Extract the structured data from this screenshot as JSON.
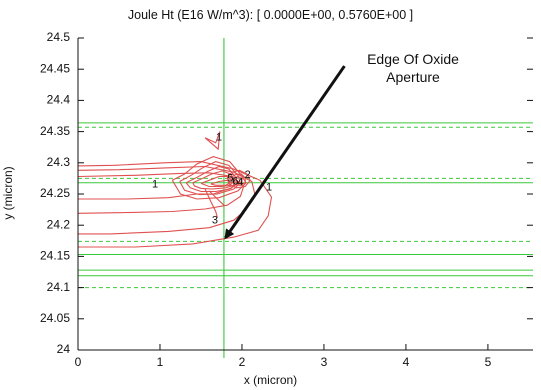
{
  "chart_data": {
    "type": "line",
    "title": "Joule Ht (E16 W/m^3): [  0.0000E+00,  0.5760E+00 ]",
    "xlabel": "x (micron)",
    "ylabel": "y (micron)",
    "xlim": [
      0,
      5.55
    ],
    "ylim": [
      24.0,
      24.5
    ],
    "x_ticks": [
      "0",
      "1",
      "2",
      "3",
      "4",
      "5"
    ],
    "y_ticks": [
      "24",
      "24.05",
      "24.1",
      "24.15",
      "24.2",
      "24.25",
      "24.3",
      "24.35",
      "24.4",
      "24.45",
      "24.5"
    ],
    "grid": false,
    "colors": {
      "contour": "#e05050",
      "guides": "#3cc83c",
      "axis": "#111111",
      "arrow": "#111111"
    },
    "annotation": {
      "text_line1": "Edge Of Oxide",
      "text_line2": "Aperture",
      "arrow_from": [
        3.25,
        24.455
      ],
      "arrow_to": [
        1.8,
        24.18
      ]
    },
    "vertical_guide_x": 1.78,
    "horizontal_guides": [
      {
        "y": 24.364,
        "style": "solid"
      },
      {
        "y": 24.357,
        "style": "dashed"
      },
      {
        "y": 24.275,
        "style": "dashed"
      },
      {
        "y": 24.268,
        "style": "solid"
      },
      {
        "y": 24.174,
        "style": "dashed"
      },
      {
        "y": 24.153,
        "style": "solid"
      },
      {
        "y": 24.128,
        "style": "solid"
      },
      {
        "y": 24.119,
        "style": "solid"
      },
      {
        "y": 24.1,
        "style": "dashed"
      }
    ],
    "contour_labels": [
      {
        "text": "1",
        "x": 1.72,
        "y": 24.34
      },
      {
        "text": "1",
        "x": 0.94,
        "y": 24.265
      },
      {
        "text": "1",
        "x": 2.33,
        "y": 24.26
      },
      {
        "text": "3",
        "x": 1.67,
        "y": 24.207
      },
      {
        "text": "2",
        "x": 2.07,
        "y": 24.28
      },
      {
        "text": "5",
        "x": 1.86,
        "y": 24.275
      },
      {
        "text": "6",
        "x": 1.92,
        "y": 24.27
      },
      {
        "text": "4",
        "x": 1.98,
        "y": 24.268
      }
    ],
    "contours": [
      [
        [
          1.55,
          24.34
        ],
        [
          1.68,
          24.332
        ],
        [
          1.73,
          24.35
        ],
        [
          1.71,
          24.322
        ],
        [
          1.55,
          24.34
        ]
      ],
      [
        [
          0.0,
          24.295
        ],
        [
          0.45,
          24.296
        ],
        [
          1.05,
          24.3
        ],
        [
          1.5,
          24.302
        ],
        [
          1.9,
          24.29
        ],
        [
          2.22,
          24.272
        ],
        [
          2.36,
          24.245
        ],
        [
          2.32,
          24.215
        ],
        [
          2.2,
          24.192
        ],
        [
          1.9,
          24.181
        ],
        [
          1.4,
          24.17
        ],
        [
          0.7,
          24.165
        ],
        [
          0.0,
          24.165
        ]
      ],
      [
        [
          0.0,
          24.288
        ],
        [
          0.5,
          24.289
        ],
        [
          1.1,
          24.292
        ],
        [
          1.55,
          24.294
        ],
        [
          1.9,
          24.285
        ],
        [
          2.12,
          24.27
        ],
        [
          2.16,
          24.248
        ],
        [
          2.05,
          24.225
        ],
        [
          1.9,
          24.208
        ],
        [
          1.6,
          24.196
        ],
        [
          1.1,
          24.19
        ],
        [
          0.4,
          24.186
        ],
        [
          0.0,
          24.186
        ]
      ],
      [
        [
          0.0,
          24.278
        ],
        [
          0.7,
          24.28
        ],
        [
          1.25,
          24.283
        ],
        [
          1.6,
          24.284
        ],
        [
          1.88,
          24.278
        ],
        [
          2.02,
          24.262
        ],
        [
          1.98,
          24.246
        ],
        [
          1.82,
          24.232
        ],
        [
          1.55,
          24.226
        ],
        [
          1.15,
          24.222
        ],
        [
          0.5,
          24.22
        ],
        [
          0.0,
          24.219
        ]
      ],
      [
        [
          0.0,
          24.242
        ],
        [
          0.6,
          24.242
        ],
        [
          1.1,
          24.244
        ],
        [
          1.45,
          24.25
        ],
        [
          1.65,
          24.25
        ],
        [
          1.88,
          24.26
        ]
      ],
      [
        [
          1.15,
          24.272
        ],
        [
          1.3,
          24.282
        ],
        [
          1.45,
          24.298
        ],
        [
          1.65,
          24.31
        ],
        [
          1.85,
          24.302
        ],
        [
          1.98,
          24.282
        ],
        [
          2.05,
          24.268
        ],
        [
          1.95,
          24.255
        ],
        [
          1.72,
          24.244
        ],
        [
          1.45,
          24.242
        ],
        [
          1.25,
          24.25
        ],
        [
          1.15,
          24.272
        ]
      ],
      [
        [
          1.24,
          24.27
        ],
        [
          1.38,
          24.28
        ],
        [
          1.52,
          24.292
        ],
        [
          1.68,
          24.302
        ],
        [
          1.84,
          24.296
        ],
        [
          1.95,
          24.28
        ],
        [
          1.98,
          24.268
        ],
        [
          1.9,
          24.258
        ],
        [
          1.7,
          24.25
        ],
        [
          1.48,
          24.249
        ],
        [
          1.3,
          24.256
        ],
        [
          1.24,
          24.27
        ]
      ],
      [
        [
          1.32,
          24.268
        ],
        [
          1.44,
          24.276
        ],
        [
          1.58,
          24.286
        ],
        [
          1.72,
          24.294
        ],
        [
          1.84,
          24.29
        ],
        [
          1.93,
          24.276
        ],
        [
          1.94,
          24.266
        ],
        [
          1.85,
          24.258
        ],
        [
          1.68,
          24.254
        ],
        [
          1.5,
          24.254
        ],
        [
          1.37,
          24.26
        ],
        [
          1.32,
          24.268
        ]
      ],
      [
        [
          1.4,
          24.268
        ],
        [
          1.52,
          24.275
        ],
        [
          1.63,
          24.282
        ],
        [
          1.76,
          24.287
        ],
        [
          1.86,
          24.282
        ],
        [
          1.91,
          24.272
        ],
        [
          1.9,
          24.264
        ],
        [
          1.8,
          24.26
        ],
        [
          1.64,
          24.258
        ],
        [
          1.5,
          24.259
        ],
        [
          1.42,
          24.263
        ],
        [
          1.4,
          24.268
        ]
      ],
      [
        [
          1.5,
          24.267
        ],
        [
          1.6,
          24.272
        ],
        [
          1.72,
          24.278
        ],
        [
          1.82,
          24.278
        ],
        [
          1.88,
          24.27
        ],
        [
          1.86,
          24.264
        ],
        [
          1.75,
          24.262
        ],
        [
          1.6,
          24.262
        ],
        [
          1.5,
          24.267
        ]
      ],
      [
        [
          1.62,
          24.266
        ],
        [
          1.72,
          24.27
        ],
        [
          1.82,
          24.272
        ],
        [
          1.86,
          24.268
        ],
        [
          1.8,
          24.264
        ],
        [
          1.68,
          24.264
        ],
        [
          1.62,
          24.266
        ]
      ],
      [
        [
          1.82,
          24.278
        ],
        [
          1.88,
          24.285
        ],
        [
          1.97,
          24.288
        ],
        [
          2.06,
          24.282
        ],
        [
          2.1,
          24.272
        ],
        [
          2.04,
          24.262
        ],
        [
          1.93,
          24.26
        ],
        [
          1.84,
          24.266
        ],
        [
          1.82,
          24.278
        ]
      ],
      [
        [
          1.86,
          24.276
        ],
        [
          1.92,
          24.281
        ],
        [
          1.99,
          24.282
        ],
        [
          2.04,
          24.276
        ],
        [
          2.04,
          24.268
        ],
        [
          1.98,
          24.264
        ],
        [
          1.9,
          24.265
        ],
        [
          1.86,
          24.276
        ]
      ],
      [
        [
          1.9,
          24.275
        ],
        [
          1.95,
          24.278
        ],
        [
          2.0,
          24.275
        ],
        [
          2.0,
          24.269
        ],
        [
          1.95,
          24.267
        ],
        [
          1.91,
          24.27
        ],
        [
          1.9,
          24.275
        ]
      ],
      [
        [
          1.6,
          24.255
        ],
        [
          1.7,
          24.242
        ],
        [
          1.78,
          24.232
        ]
      ],
      [
        [
          1.55,
          24.258
        ],
        [
          1.62,
          24.238
        ],
        [
          1.68,
          24.222
        ],
        [
          1.7,
          24.212
        ]
      ]
    ]
  }
}
